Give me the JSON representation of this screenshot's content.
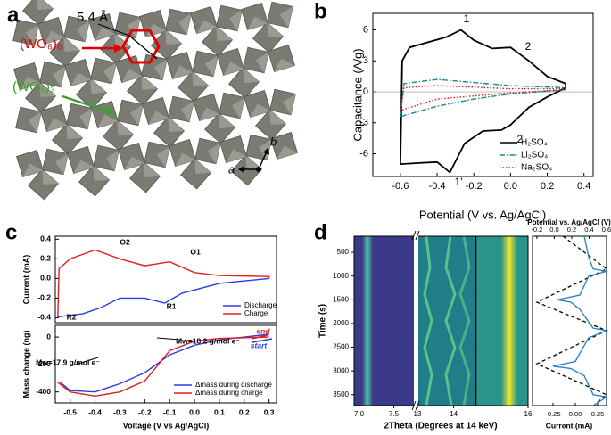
{
  "panels": [
    "a",
    "b",
    "c",
    "d"
  ],
  "diagram": {
    "spacing": "5.4 Å",
    "ring6": "(WO₆)₆",
    "ring3": "(WO₆)₃",
    "axis_a": "a",
    "axis_b": "b"
  },
  "chart_data": [
    {
      "type": "line",
      "xlabel": "Potential (V vs. Ag/AgCl)",
      "ylabel": "Capacitance (A/g)",
      "xlim": [
        -0.75,
        0.45
      ],
      "xticks": [
        -0.6,
        -0.4,
        -0.2,
        {
          "value": 0,
          "label": "0.0"
        },
        0.2,
        0.4
      ],
      "ylim": [
        -8.2,
        7.6
      ],
      "yticks": [
        6,
        3,
        0,
        -3,
        -6
      ],
      "legend": "lower right",
      "annotations": [
        {
          "text": "1"
        },
        {
          "text": "2"
        },
        {
          "text": "2'"
        },
        {
          "text": "1'"
        }
      ],
      "series": [
        {
          "name": "H₂SO₄",
          "color": "#000000",
          "linestyle": "solid",
          "x": [
            -0.6,
            -0.59,
            -0.55,
            -0.45,
            -0.35,
            -0.27,
            -0.2,
            -0.1,
            0,
            0.1,
            0.2,
            0.3,
            0.3,
            0.2,
            0.1,
            0,
            -0.05,
            -0.15,
            -0.25,
            -0.33,
            -0.4,
            -0.5,
            -0.6
          ],
          "values": [
            -7,
            3,
            4.3,
            4.8,
            5.3,
            6,
            5,
            4.2,
            4.3,
            3,
            1.5,
            0.8,
            0.4,
            -0.5,
            -1.5,
            -3.2,
            -3.7,
            -3.8,
            -5,
            -7.8,
            -6.8,
            -6.9,
            -7
          ]
        },
        {
          "name": "Li₂SO₄",
          "color": "#1a8a8a",
          "linestyle": "dashdot",
          "x": [
            -0.6,
            -0.58,
            -0.4,
            -0.2,
            0,
            0.3,
            0.3,
            0,
            -0.2,
            -0.4,
            -0.6
          ],
          "values": [
            -2.4,
            0.8,
            1.2,
            0.9,
            0.6,
            0.4,
            0.2,
            -0.2,
            -0.7,
            -1.4,
            -2.4
          ]
        },
        {
          "name": "Na₂SO₄",
          "color": "#d62020",
          "linestyle": "dotted",
          "x": [
            -0.6,
            -0.58,
            -0.4,
            0,
            0.3,
            0.3,
            0,
            -0.4,
            -0.6
          ],
          "values": [
            -1.8,
            0.4,
            0.6,
            0.3,
            0.3,
            0.2,
            -0.1,
            -0.7,
            -1.8
          ]
        }
      ]
    },
    {
      "type": "line",
      "ylabel": "Current (mA)",
      "xlim": [
        -0.56,
        0.33
      ],
      "ylim": [
        -0.45,
        0.43
      ],
      "yticks": [
        0.4,
        0.2,
        {
          "value": 0,
          "label": "0.0"
        },
        -0.2,
        -0.4
      ],
      "legend": "lower right",
      "annotations": [
        {
          "text": "O2"
        },
        {
          "text": "O1"
        },
        {
          "text": "R1"
        },
        {
          "text": "R2"
        }
      ],
      "series": [
        {
          "name": "Discharge",
          "color": "#2a3de0",
          "linestyle": "solid",
          "x": [
            0.3,
            0.1,
            -0.05,
            -0.12,
            -0.2,
            -0.3,
            -0.38,
            -0.45,
            -0.55
          ],
          "values": [
            0,
            -0.05,
            -0.15,
            -0.25,
            -0.2,
            -0.2,
            -0.3,
            -0.36,
            -0.39
          ]
        },
        {
          "name": "Charge",
          "color": "#e02020",
          "linestyle": "solid",
          "x": [
            -0.55,
            -0.545,
            -0.5,
            -0.4,
            -0.3,
            -0.2,
            -0.1,
            0,
            0.1,
            0.3,
            0.3
          ],
          "values": [
            -0.4,
            0.1,
            0.2,
            0.29,
            0.2,
            0.13,
            0.17,
            0.06,
            0.03,
            0.02,
            0
          ]
        }
      ]
    },
    {
      "type": "line",
      "xlabel": "Voltage (V vs Ag/AgCl)",
      "ylabel": "Mass change (ng)",
      "xlim": [
        -0.56,
        0.33
      ],
      "xticks": [
        -0.5,
        -0.4,
        -0.3,
        -0.2,
        -0.1,
        {
          "value": 0,
          "label": "0.0"
        },
        0.1,
        0.2,
        0.3
      ],
      "ylim": [
        -480,
        85
      ],
      "yticks": [
        0,
        -200,
        -400
      ],
      "legend": "lower right",
      "annotations": [
        {
          "text": "end",
          "color": "#e02020"
        },
        {
          "text": "start",
          "color": "#2a3de0"
        },
        {
          "text": "Mw=17.9 g/mol e⁻",
          "color": "#000000"
        },
        {
          "text": "Mw=18.2 g/mol e⁻",
          "color": "#000000"
        }
      ],
      "series": [
        {
          "name": "Δmass during discharge",
          "color": "#2a3de0",
          "linestyle": "solid",
          "x": [
            0.3,
            0.2,
            0.1,
            0,
            -0.1,
            -0.2,
            -0.3,
            -0.4,
            -0.5,
            -0.54
          ],
          "values": [
            20,
            0,
            -20,
            -60,
            -130,
            -260,
            -340,
            -400,
            -390,
            -330
          ]
        },
        {
          "name": "Δmass during charge",
          "color": "#e02020",
          "linestyle": "solid",
          "x": [
            -0.55,
            -0.5,
            -0.4,
            -0.3,
            -0.2,
            -0.1,
            0,
            0.1,
            0.3
          ],
          "values": [
            -330,
            -400,
            -430,
            -400,
            -320,
            -100,
            -30,
            -10,
            0
          ]
        }
      ]
    },
    {
      "type": "heatmap",
      "xlabel": "2Theta (Degrees at 14 keV)",
      "ylabel": "Time (s)",
      "ylim": [
        160,
        3730
      ],
      "yticks": [
        500,
        1000,
        1500,
        2000,
        2500,
        3000,
        3500
      ],
      "x_segments": [
        {
          "xlim": [
            6.93,
            7.8
          ],
          "xticks": [
            {
              "value": 7,
              "label": "7.0"
            },
            7.5
          ]
        },
        {
          "xlim": [
            13,
            14.6
          ],
          "xticks": [
            13,
            14
          ]
        },
        {
          "xlim": [
            14.6,
            16
          ],
          "xticks": [
            16
          ]
        }
      ]
    },
    {
      "type": "vline",
      "xlabel": "Current (mA)",
      "xlim": [
        -0.48,
        0.35
      ],
      "xticks": [
        -0.25,
        {
          "value": 0,
          "label": "0.00"
        },
        0.25
      ],
      "x2label": "Potential vs. Ag/AgCl (V)",
      "x2lim": [
        -0.25,
        0.6
      ],
      "x2ticks": [
        -0.2,
        {
          "value": 0,
          "label": "0.0"
        },
        0.2,
        0.4,
        0.6
      ],
      "ylim": [
        160,
        3730
      ],
      "series": [
        {
          "color": "#000000",
          "linestyle": "dashed",
          "axis": "x2",
          "time": [
            160,
            850,
            1550,
            2150,
            2850,
            3500,
            3730
          ],
          "values": [
            0.1,
            0.6,
            -0.2,
            0.6,
            -0.2,
            0.6,
            0.45
          ]
        },
        {
          "color": "#2a7fc0",
          "linestyle": "solid",
          "time": [
            160,
            600,
            850,
            900,
            1000,
            1400,
            1500,
            1550,
            1700,
            2100,
            2150,
            2300,
            2800,
            2900,
            2950,
            3100,
            3500,
            3550,
            3730
          ],
          "values": [
            0.1,
            0.15,
            0.2,
            0.35,
            0.15,
            0.05,
            -0.2,
            -0.05,
            0.05,
            0.2,
            0.35,
            0.15,
            0,
            -0.25,
            -0.05,
            0.1,
            0.2,
            0.35,
            0.2
          ]
        }
      ]
    }
  ]
}
